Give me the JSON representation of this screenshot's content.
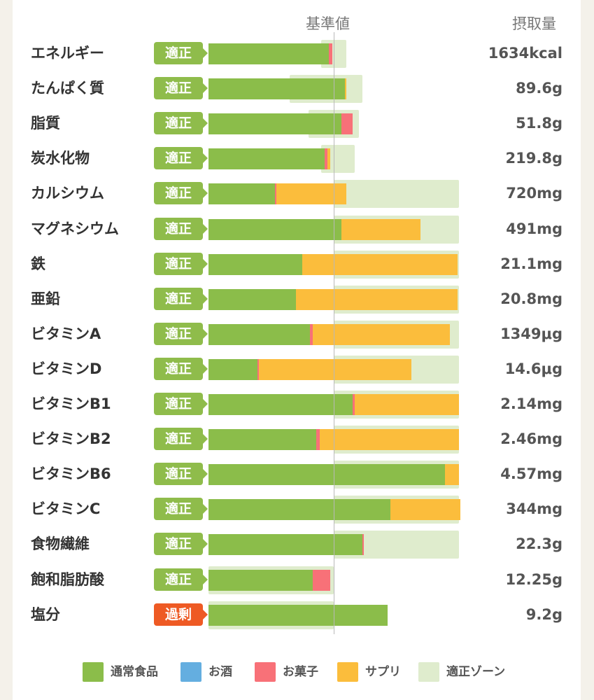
{
  "chart_data": {
    "type": "bar",
    "stacked": true,
    "orientation": "horizontal",
    "header": {
      "reference": "基準値",
      "intake": "摂取量"
    },
    "status_colors": {
      "適正": "#8fbc4b",
      "過剰": "#ee5a24"
    },
    "series": [
      {
        "name": "通常食品",
        "color": "#8bbd4a"
      },
      {
        "name": "お酒",
        "color": "#64aee0"
      },
      {
        "name": "お菓子",
        "color": "#f87178"
      },
      {
        "name": "サプリ",
        "color": "#fbbd3c"
      },
      {
        "name": "適正ゾーン",
        "color": "#dfeccd"
      }
    ],
    "note": "Bar values are percent of the reference value (基準値 = 100).",
    "rows": [
      {
        "label": "エネルギー",
        "status": "適正",
        "intake": "1634kcal",
        "zone": [
          90,
          110
        ],
        "segments": [
          96,
          0,
          3,
          0
        ]
      },
      {
        "label": "たんぱく質",
        "status": "適正",
        "intake": "89.6g",
        "zone": [
          65,
          123
        ],
        "segments": [
          109,
          0,
          0,
          1
        ]
      },
      {
        "label": "脂質",
        "status": "適正",
        "intake": "51.8g",
        "zone": [
          80,
          120
        ],
        "segments": [
          106,
          0,
          9,
          0
        ]
      },
      {
        "label": "炭水化物",
        "status": "適正",
        "intake": "219.8g",
        "zone": [
          90,
          117
        ],
        "segments": [
          93,
          0,
          2,
          2
        ]
      },
      {
        "label": "カルシウム",
        "status": "適正",
        "intake": "720mg",
        "zone": [
          100,
          200
        ],
        "segments": [
          53,
          0,
          1,
          56
        ]
      },
      {
        "label": "マグネシウム",
        "status": "適正",
        "intake": "491mg",
        "zone": [
          100,
          200
        ],
        "segments": [
          106,
          0,
          0,
          63
        ]
      },
      {
        "label": "鉄",
        "status": "適正",
        "intake": "21.1mg",
        "zone": [
          100,
          200
        ],
        "segments": [
          75,
          0,
          0,
          124
        ]
      },
      {
        "label": "亜鉛",
        "status": "適正",
        "intake": "20.8mg",
        "zone": [
          100,
          200
        ],
        "segments": [
          70,
          0,
          0,
          129
        ]
      },
      {
        "label": "ビタミンA",
        "status": "適正",
        "intake": "1349μg",
        "zone": [
          100,
          200
        ],
        "segments": [
          81,
          0,
          2,
          110
        ]
      },
      {
        "label": "ビタミンD",
        "status": "適正",
        "intake": "14.6μg",
        "zone": [
          100,
          200
        ],
        "segments": [
          39,
          0,
          1,
          122
        ]
      },
      {
        "label": "ビタミンB1",
        "status": "適正",
        "intake": "2.14mg",
        "zone": [
          100,
          200
        ],
        "segments": [
          115,
          0,
          2,
          83
        ]
      },
      {
        "label": "ビタミンB2",
        "status": "適正",
        "intake": "2.46mg",
        "zone": [
          100,
          200
        ],
        "segments": [
          86,
          0,
          3,
          111
        ]
      },
      {
        "label": "ビタミンB6",
        "status": "適正",
        "intake": "4.57mg",
        "zone": [
          100,
          200
        ],
        "segments": [
          189,
          0,
          0,
          11
        ]
      },
      {
        "label": "ビタミンC",
        "status": "適正",
        "intake": "344mg",
        "zone": [
          100,
          200
        ],
        "segments": [
          145,
          0,
          0,
          56
        ]
      },
      {
        "label": "食物繊維",
        "status": "適正",
        "intake": "22.3g",
        "zone": [
          100,
          200
        ],
        "segments": [
          123,
          0,
          1,
          0
        ]
      },
      {
        "label": "飽和脂肪酸",
        "status": "適正",
        "intake": "12.25g",
        "zone": [
          0,
          100
        ],
        "segments": [
          83,
          0,
          14,
          0
        ]
      },
      {
        "label": "塩分",
        "status": "過剰",
        "intake": "9.2g",
        "zone": [
          0,
          100
        ],
        "segments": [
          143,
          0,
          0,
          0
        ]
      }
    ]
  }
}
